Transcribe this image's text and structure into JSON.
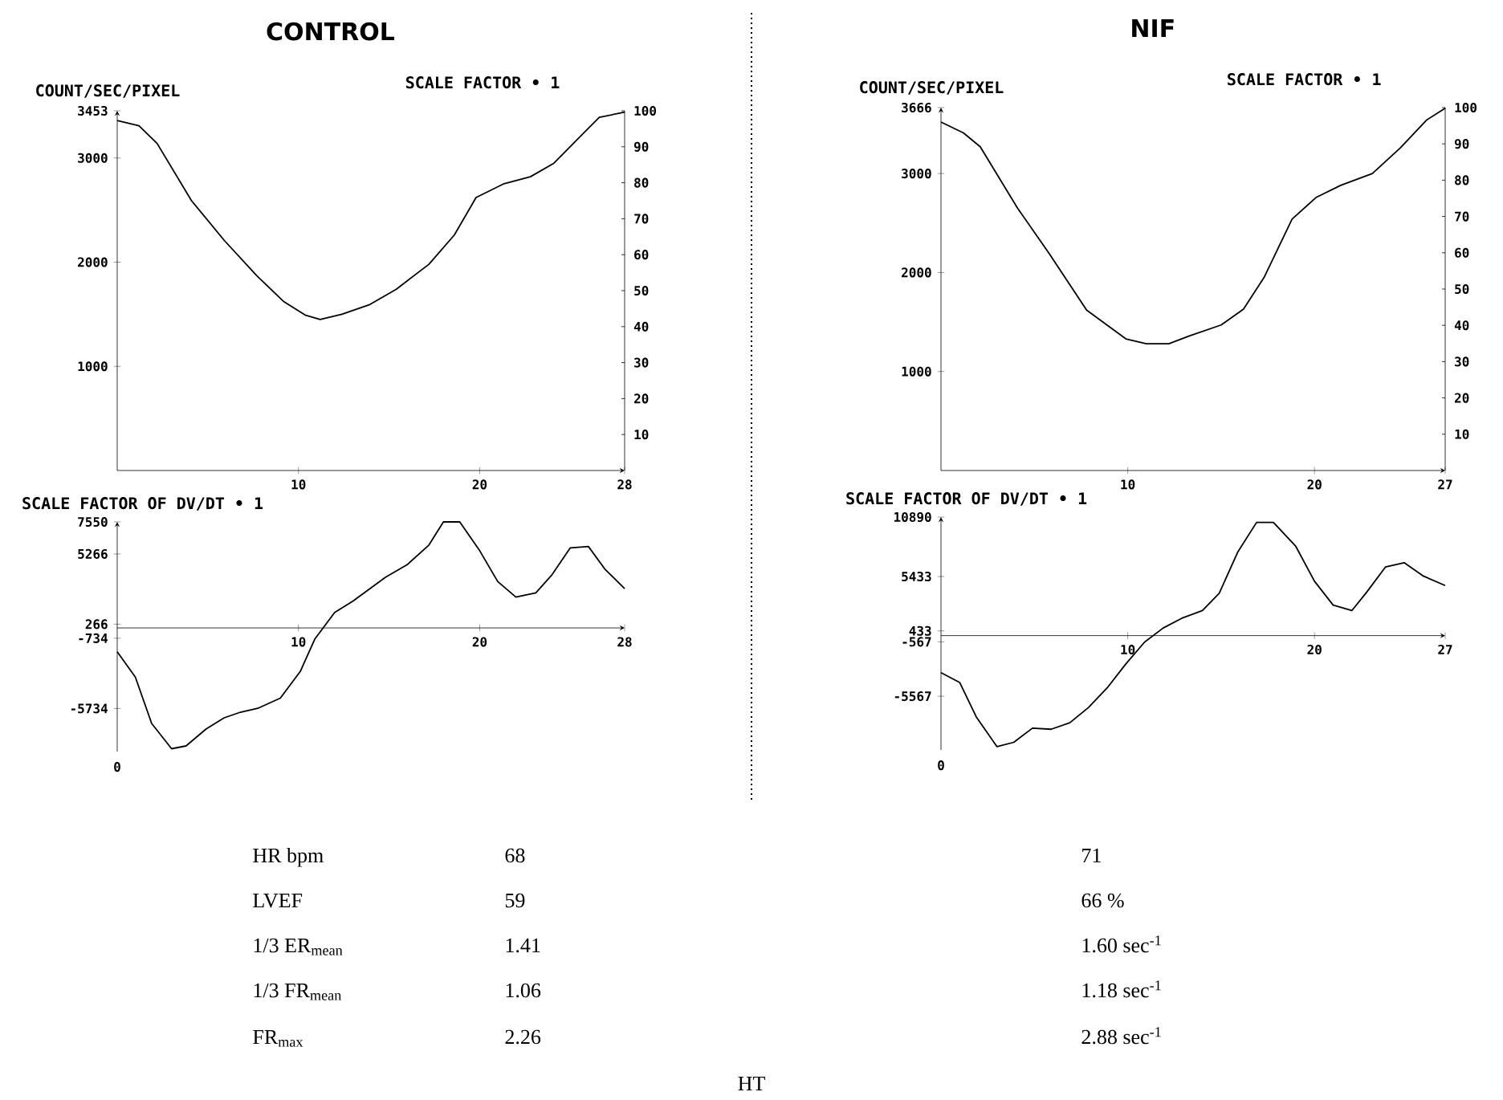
{
  "chart_data": [
    {
      "type": "line",
      "title": "CONTROL",
      "subtitle": "SCALE FACTOR • 1",
      "ylabel": "COUNT/SEC/PIXEL",
      "color": "#000000",
      "x": [
        0,
        1.2,
        2.2,
        4.1,
        5.9,
        7.7,
        9.2,
        10.4,
        11.2,
        12.4,
        13.9,
        15.4,
        17.2,
        18.6,
        19.8,
        21.3,
        22.8,
        24.1,
        25.4,
        26.6,
        28
      ],
      "values": [
        3360,
        3310,
        3140,
        2590,
        2210,
        1870,
        1620,
        1490,
        1450,
        1500,
        1590,
        1740,
        1980,
        2260,
        2620,
        2750,
        2820,
        2950,
        3180,
        3390,
        3440
      ],
      "xlim": [
        0,
        28
      ],
      "xticks": [
        10,
        20,
        28
      ],
      "ylim": [
        0,
        3453
      ],
      "yticks": [
        1000,
        2000,
        3000,
        3453
      ],
      "y2lim": [
        0,
        100
      ],
      "y2ticks": [
        10,
        20,
        30,
        40,
        50,
        60,
        70,
        80,
        90,
        100
      ]
    },
    {
      "type": "line",
      "subtitle": "SCALE FACTOR OF DV/DT • 1",
      "color": "#000000",
      "x": [
        0,
        1.0,
        1.9,
        3.0,
        3.8,
        4.9,
        5.9,
        6.8,
        7.8,
        9.0,
        10.1,
        10.9,
        12.0,
        13.0,
        14.8,
        16.0,
        17.2,
        18.0,
        18.9,
        20.0,
        21.0,
        22.0,
        23.1,
        24.0,
        25.0,
        26.0,
        26.9,
        28
      ],
      "values": [
        -1700,
        -3500,
        -6800,
        -8600,
        -8400,
        -7200,
        -6400,
        -6000,
        -5700,
        -5000,
        -3100,
        -800,
        1100,
        1900,
        3600,
        4500,
        5900,
        7550,
        7550,
        5500,
        3300,
        2200,
        2500,
        3800,
        5700,
        5800,
        4200,
        2800
      ],
      "xlim": [
        0,
        28
      ],
      "xticks": [
        10,
        20,
        28
      ],
      "ylim": [
        -8800,
        7550
      ],
      "yticks": [
        -5734,
        -734,
        266,
        5266,
        7550
      ],
      "annotations": [
        "0"
      ]
    },
    {
      "type": "line",
      "title": "NIF",
      "subtitle": "SCALE FACTOR • 1",
      "ylabel": "COUNT/SEC/PIXEL",
      "color": "#000000",
      "x": [
        0,
        1.2,
        2.1,
        4.1,
        5.8,
        7.8,
        9.9,
        11.0,
        12.2,
        13.3,
        15.0,
        16.2,
        17.3,
        18.8,
        20.1,
        21.4,
        23.1,
        24.6,
        26.0,
        27
      ],
      "values": [
        3520,
        3410,
        3270,
        2650,
        2190,
        1620,
        1330,
        1280,
        1280,
        1360,
        1470,
        1630,
        1950,
        2540,
        2760,
        2880,
        3000,
        3260,
        3540,
        3660
      ],
      "xlim": [
        0,
        27
      ],
      "xticks": [
        10,
        20,
        27
      ],
      "ylim": [
        0,
        3666
      ],
      "yticks": [
        1000,
        2000,
        3000,
        3666
      ],
      "y2lim": [
        0,
        100
      ],
      "y2ticks": [
        10,
        20,
        30,
        40,
        50,
        60,
        70,
        80,
        90,
        100
      ]
    },
    {
      "type": "line",
      "subtitle": "SCALE FACTOR OF DV/DT • 1",
      "color": "#000000",
      "x": [
        0,
        1.0,
        1.9,
        3.0,
        3.9,
        4.9,
        5.9,
        6.9,
        7.9,
        8.9,
        9.9,
        10.9,
        11.9,
        12.9,
        14.0,
        14.9,
        15.9,
        16.9,
        17.8,
        19.0,
        20.0,
        21.0,
        22.0,
        22.8,
        23.8,
        24.8,
        25.8,
        27
      ],
      "values": [
        -3400,
        -4300,
        -7500,
        -10200,
        -9800,
        -8500,
        -8600,
        -8000,
        -6600,
        -4800,
        -2600,
        -600,
        700,
        1600,
        2300,
        3900,
        7700,
        10400,
        10400,
        8200,
        5000,
        2800,
        2300,
        4000,
        6300,
        6700,
        5500,
        4600
      ],
      "xlim": [
        0,
        27
      ],
      "xticks": [
        10,
        20,
        27
      ],
      "ylim": [
        -10500,
        10890
      ],
      "yticks": [
        -5567,
        -567,
        433,
        5433,
        10890
      ],
      "annotations": [
        "0"
      ]
    },
    {
      "type": "other",
      "title": "HT",
      "annotations": [
        "HR bpm",
        "68",
        "71",
        "LVEF",
        "59",
        "66 %",
        "1/3 ER$_{mean}$",
        "1.41",
        "1.60 sec$^{-1}$",
        "1/3 FR$_{mean}$",
        "1.06",
        "1.18 sec$^{-1}$",
        "FR$_{max}$",
        "2.26",
        "2.88 sec$^{-1}$"
      ]
    }
  ]
}
